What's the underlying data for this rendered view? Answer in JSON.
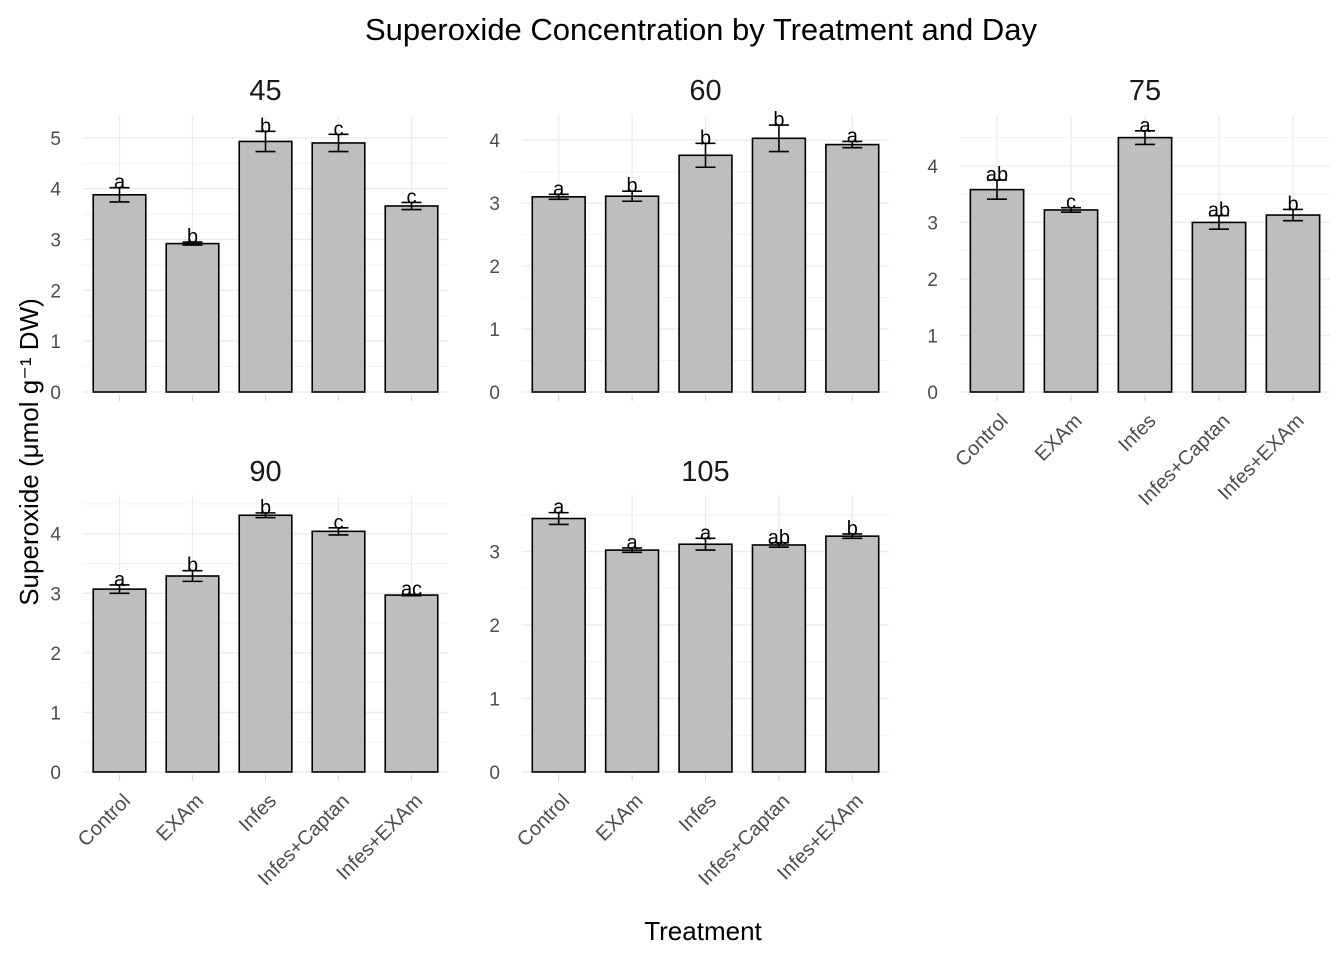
{
  "chart_data": {
    "type": "bar",
    "title": "Superoxide Concentration by Treatment and Day",
    "xlabel": "Treatment",
    "ylabel": "Superoxide (μmol g⁻¹ DW)",
    "categories": [
      "Control",
      "EXAm",
      "Infes",
      "Infes+Captan",
      "Infes+EXAm"
    ],
    "bar_color": "#bebebe",
    "grid": true,
    "panels": [
      {
        "day": "45",
        "values": [
          3.88,
          2.92,
          4.93,
          4.9,
          3.66
        ],
        "errors": [
          0.14,
          0.03,
          0.2,
          0.17,
          0.07
        ],
        "letters": [
          "a",
          "b",
          "b",
          "c",
          "c"
        ],
        "yticks": [
          0,
          1,
          2,
          3,
          4,
          5
        ],
        "ylim": [
          0,
          5.45
        ]
      },
      {
        "day": "60",
        "values": [
          3.1,
          3.11,
          3.76,
          4.03,
          3.93
        ],
        "errors": [
          0.04,
          0.08,
          0.19,
          0.21,
          0.05
        ],
        "letters": [
          "a",
          "b",
          "b",
          "b",
          "a"
        ],
        "yticks": [
          0,
          1,
          2,
          3,
          4
        ],
        "ylim": [
          0,
          4.4
        ]
      },
      {
        "day": "75",
        "values": [
          3.58,
          3.22,
          4.5,
          3.0,
          3.13
        ],
        "errors": [
          0.17,
          0.04,
          0.12,
          0.12,
          0.1
        ],
        "letters": [
          "ab",
          "c",
          "a",
          "ab",
          "b"
        ],
        "yticks": [
          0,
          1,
          2,
          3,
          4
        ],
        "ylim": [
          0,
          4.9
        ]
      },
      {
        "day": "90",
        "values": [
          3.07,
          3.29,
          4.31,
          4.04,
          2.97
        ],
        "errors": [
          0.07,
          0.09,
          0.04,
          0.06,
          0.01
        ],
        "letters": [
          "a",
          "b",
          "b",
          "c",
          "ac"
        ],
        "yticks": [
          0,
          1,
          2,
          3,
          4
        ],
        "ylim": [
          0,
          4.65
        ]
      },
      {
        "day": "105",
        "values": [
          3.45,
          3.02,
          3.1,
          3.09,
          3.21
        ],
        "errors": [
          0.08,
          0.03,
          0.08,
          0.03,
          0.03
        ],
        "letters": [
          "a",
          "a",
          "a",
          "ab",
          "b"
        ],
        "yticks": [
          0,
          1,
          2,
          3
        ],
        "ylim": [
          0,
          3.77
        ]
      }
    ]
  }
}
